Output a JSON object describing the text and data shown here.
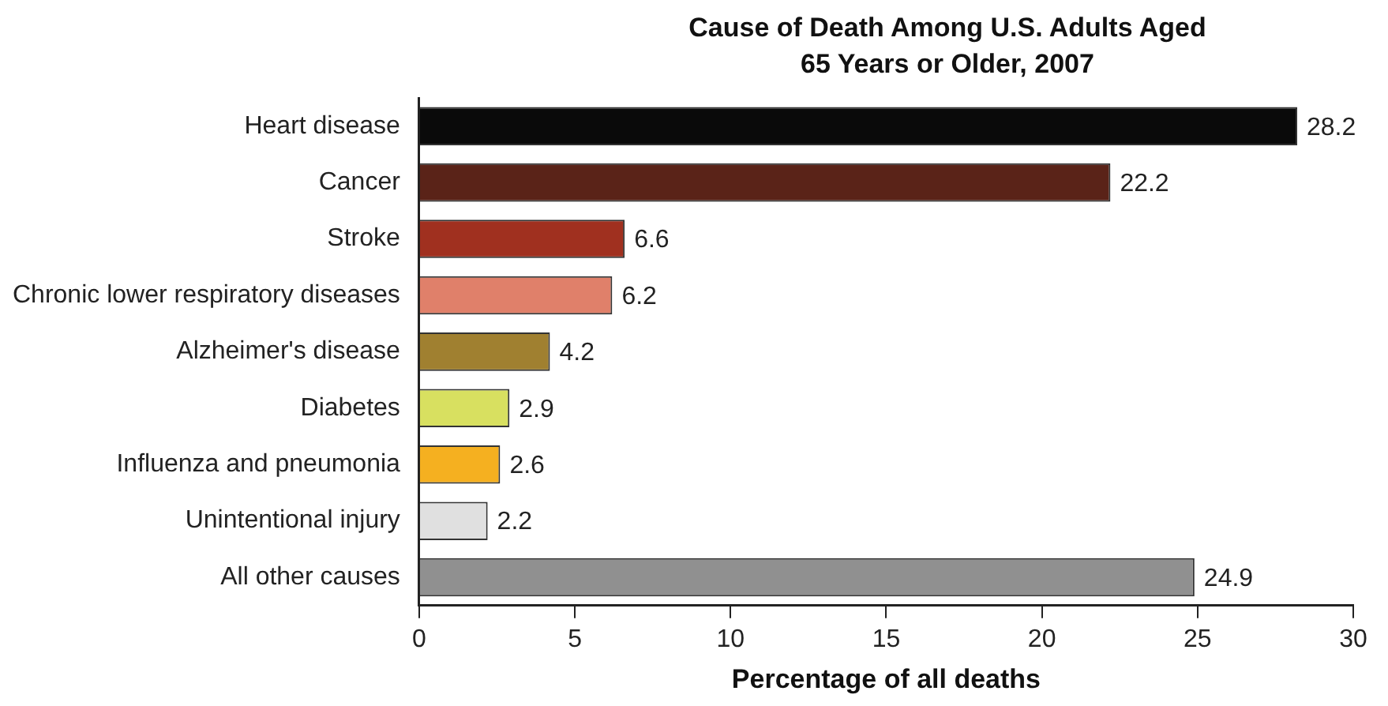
{
  "chart_data": {
    "type": "bar",
    "orientation": "horizontal",
    "title": "Cause of Death Among U.S. Adults Aged 65 Years or Older, 2007",
    "xlabel": "Percentage of all deaths",
    "categories": [
      "Heart disease",
      "Cancer",
      "Stroke",
      "Chronic lower respiratory diseases",
      "Alzheimer's disease",
      "Diabetes",
      "Influenza and pneumonia",
      "Unintentional injury",
      "All other causes"
    ],
    "values": [
      28.2,
      22.2,
      6.6,
      6.2,
      4.2,
      2.9,
      2.6,
      2.2,
      24.9
    ],
    "colors": [
      "#0a0a0a",
      "#5a2318",
      "#a0301f",
      "#e0806a",
      "#a08030",
      "#d8e060",
      "#f5b020",
      "#e0e0e0",
      "#909090"
    ],
    "xlim": [
      0,
      30
    ],
    "xticks": [
      0,
      5,
      10,
      15,
      20,
      25,
      30
    ],
    "grid": false,
    "legend": false,
    "data_labels": true
  }
}
